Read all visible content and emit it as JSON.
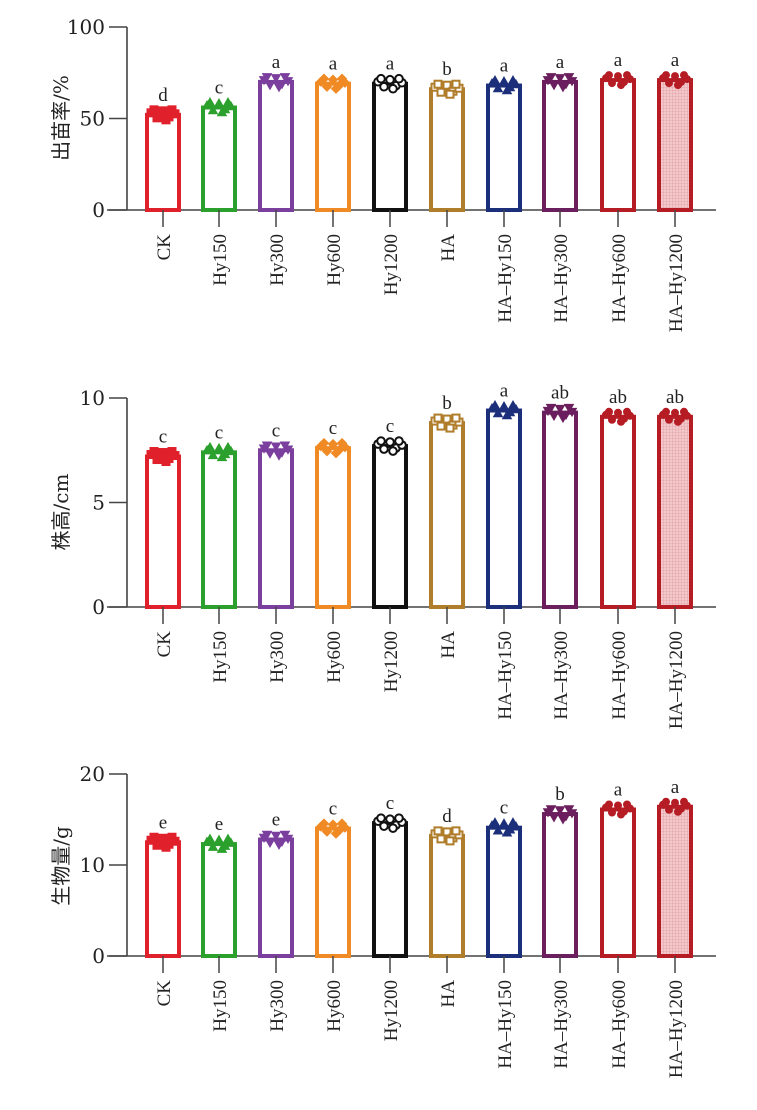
{
  "chart_data": [
    {
      "type": "bar",
      "ylabel": "出苗率/%",
      "ylim": [
        0,
        100
      ],
      "yticks": [
        "0",
        "50",
        "100"
      ],
      "categories": [
        "CK",
        "Hy150",
        "Hy300",
        "Hy600",
        "Hy1200",
        "HA",
        "HA-Hy150",
        "HA-Hy300",
        "HA-Hy600",
        "HA-Hy1200"
      ],
      "values": [
        52,
        56,
        70,
        69,
        69,
        66,
        68,
        70,
        71,
        71
      ],
      "significance": [
        "d",
        "c",
        "a",
        "a",
        "a",
        "b",
        "a",
        "a",
        "a",
        "a"
      ]
    },
    {
      "type": "bar",
      "ylabel": "株高/cm",
      "ylim": [
        0,
        10
      ],
      "yticks": [
        "0",
        "5",
        "10"
      ],
      "categories": [
        "CK",
        "Hy150",
        "Hy300",
        "Hy600",
        "Hy1200",
        "HA",
        "HA-Hy150",
        "HA-Hy300",
        "HA-Hy600",
        "HA-Hy1200"
      ],
      "values": [
        7.2,
        7.4,
        7.5,
        7.6,
        7.7,
        8.8,
        9.4,
        9.3,
        9.1,
        9.1
      ],
      "significance": [
        "c",
        "c",
        "c",
        "c",
        "c",
        "b",
        "a",
        "ab",
        "ab",
        "ab"
      ]
    },
    {
      "type": "bar",
      "ylabel": "生物量/g",
      "ylim": [
        0,
        20
      ],
      "yticks": [
        "0",
        "10",
        "20"
      ],
      "categories": [
        "CK",
        "Hy150",
        "Hy300",
        "Hy600",
        "Hy1200",
        "HA",
        "HA-Hy150",
        "HA-Hy300",
        "HA-Hy600",
        "HA-Hy1200"
      ],
      "values": [
        12.5,
        12.3,
        12.8,
        14.0,
        14.6,
        13.2,
        14.1,
        15.6,
        16.1,
        16.4
      ],
      "significance": [
        "e",
        "e",
        "e",
        "c",
        "c",
        "d",
        "c",
        "b",
        "a",
        "a"
      ]
    }
  ],
  "colors": [
    "#e0212b",
    "#2ca02c",
    "#7b3f9e",
    "#f08a24",
    "#111111",
    "#b07d2a",
    "#1c2f7a",
    "#6b1f5e",
    "#b51c24",
    "#b51c24"
  ]
}
